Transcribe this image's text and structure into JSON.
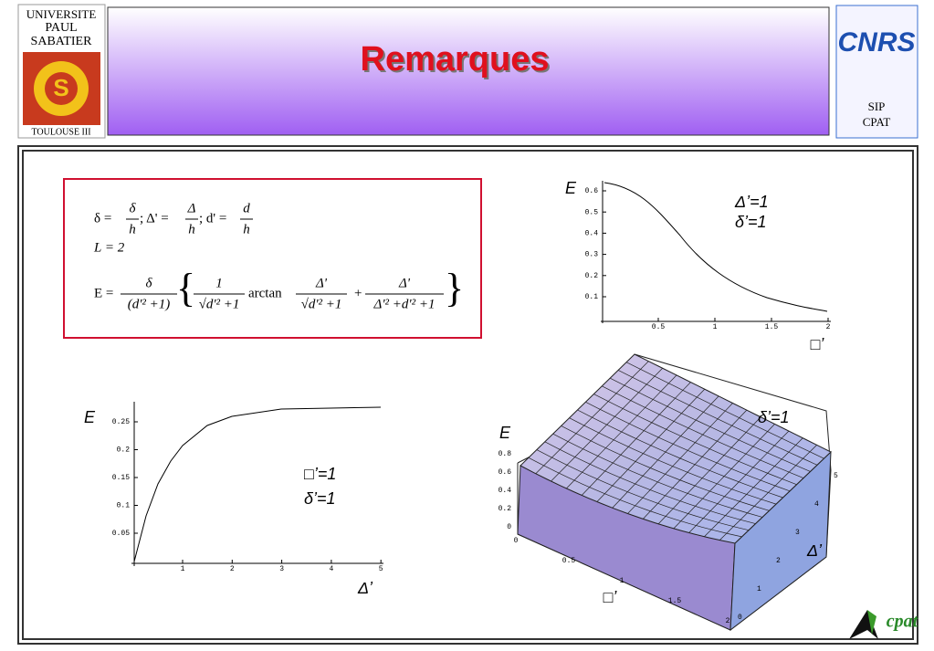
{
  "header": {
    "title": "Remarques",
    "left_logo": [
      "UNIVERSITE",
      "PAUL",
      "SABATIER",
      "TOULOUSE III"
    ],
    "right_logo": {
      "mark": "CNRS",
      "lines": [
        "SIP",
        "CPAT"
      ]
    },
    "corner_logo": "cpat"
  },
  "formula": {
    "line1": [
      "δ =",
      "δ",
      "h",
      ";  Δ' =",
      "Δ",
      "h",
      ";  d' =",
      "d",
      "h"
    ],
    "line2": "L = 2",
    "line3": [
      "E =",
      "δ",
      "(d'² +1)",
      "1",
      "√d'² +1",
      "arctan",
      "Δ'",
      "√d'² +1",
      "+",
      "Δ'",
      "Δ'² +d'² +1"
    ]
  },
  "plot1": {
    "y_label": "E",
    "yticks": [
      "0.6",
      "0.5",
      "0.4",
      "0.3",
      "0.2",
      "0.1"
    ],
    "xticks": [
      "0.5",
      "1",
      "1.5",
      "2"
    ],
    "x_label": "□’",
    "annotations": [
      "Δ’=1",
      "δ’=1"
    ]
  },
  "plot2": {
    "y_label": "E",
    "yticks": [
      "0.25",
      "0.2",
      "0.15",
      "0.1",
      "0.05"
    ],
    "xticks": [
      "1",
      "2",
      "3",
      "4",
      "5"
    ],
    "x_label": "Δ’",
    "annotations": [
      "□’=1",
      "δ’=1"
    ]
  },
  "plot3": {
    "z_label": "E",
    "zticks": [
      "0.8",
      "0.6",
      "0.4",
      "0.2",
      "0"
    ],
    "xticks": [
      "0",
      "0.5",
      "1",
      "1.5",
      "2"
    ],
    "x_label": "□’",
    "yticks": [
      "0",
      "1",
      "2",
      "3",
      "4",
      "5"
    ],
    "y_label": "Δ’",
    "annotation": "δ’=1"
  }
}
